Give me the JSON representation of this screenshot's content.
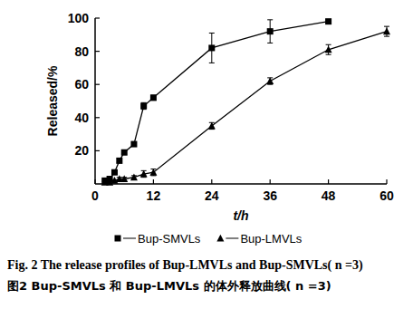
{
  "chart_data": {
    "type": "line",
    "x_label": "t/h",
    "y_label": "Released/%",
    "caption_en": "Fig. 2  The release profiles of Bup-LMVLs and Bup-SMVLs( n =3)",
    "caption_zh": "图2  Bup-SMVLs 和 Bup-LMVLs 的体外释放曲线( n =3)",
    "xlim": [
      0,
      60
    ],
    "xticks": [
      0,
      12,
      24,
      36,
      48,
      60
    ],
    "ylim": [
      0,
      100
    ],
    "yticks": [
      20,
      40,
      60,
      80,
      100
    ],
    "grid": false,
    "legend": "bottom",
    "series": [
      {
        "name": "Bup-SMVLs",
        "color": "#000000",
        "marker": "square",
        "line_style": "solid",
        "x": [
          2,
          3,
          4,
          5,
          6,
          8,
          10,
          12,
          24,
          36,
          48
        ],
        "values": [
          2,
          3,
          7,
          14,
          19,
          24,
          47,
          52,
          82,
          92,
          98
        ],
        "errors": [
          0.5,
          0.5,
          1,
          1,
          1,
          1,
          2,
          1.5,
          9,
          7,
          1
        ]
      },
      {
        "name": "Bup-LMVLs",
        "color": "#000000",
        "marker": "triangle",
        "line_style": "solid",
        "x": [
          2,
          3,
          4,
          5,
          6,
          8,
          10,
          12,
          24,
          36,
          48,
          60
        ],
        "values": [
          1,
          1,
          2,
          3,
          3,
          4,
          6,
          7,
          35,
          62,
          81,
          92
        ],
        "errors": [
          0.5,
          0.5,
          0.5,
          1,
          1,
          1,
          2,
          2,
          2,
          2,
          3,
          3
        ]
      }
    ]
  }
}
